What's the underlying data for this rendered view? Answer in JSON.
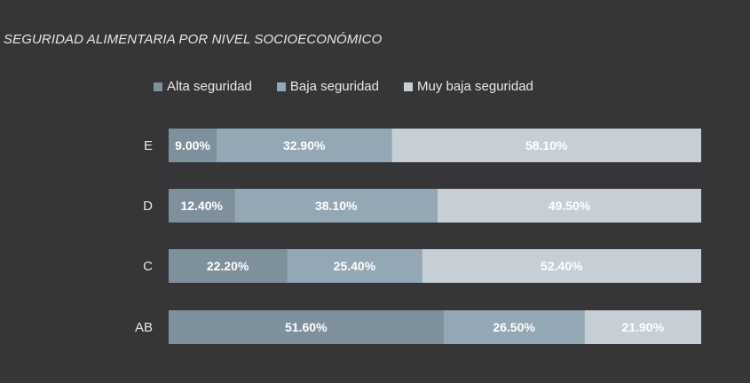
{
  "chart_data": {
    "type": "bar",
    "orientation": "horizontal",
    "stacked": "percent",
    "title": "SEGURIDAD ALIMENTARIA POR NIVEL SOCIOECONÓMICO",
    "categories": [
      "E",
      "D",
      "C",
      "AB"
    ],
    "series": [
      {
        "name": "Alta seguridad",
        "color": "#7f909d",
        "values": [
          9.0,
          12.4,
          22.2,
          51.6
        ],
        "labels": [
          "9.00%",
          "12.40%",
          "22.20%",
          "51.60%"
        ]
      },
      {
        "name": "Baja seguridad",
        "color": "#94a7b4",
        "values": [
          32.9,
          38.1,
          25.4,
          26.5
        ],
        "labels": [
          "32.90%",
          "38.10%",
          "25.40%",
          "26.50%"
        ]
      },
      {
        "name": "Muy baja seguridad",
        "color": "#c7cfd6",
        "values": [
          58.1,
          49.5,
          52.4,
          21.9
        ],
        "labels": [
          "58.10%",
          "49.50%",
          "52.40%",
          "21.90%"
        ]
      }
    ],
    "legend_position": "top",
    "grid": false
  }
}
